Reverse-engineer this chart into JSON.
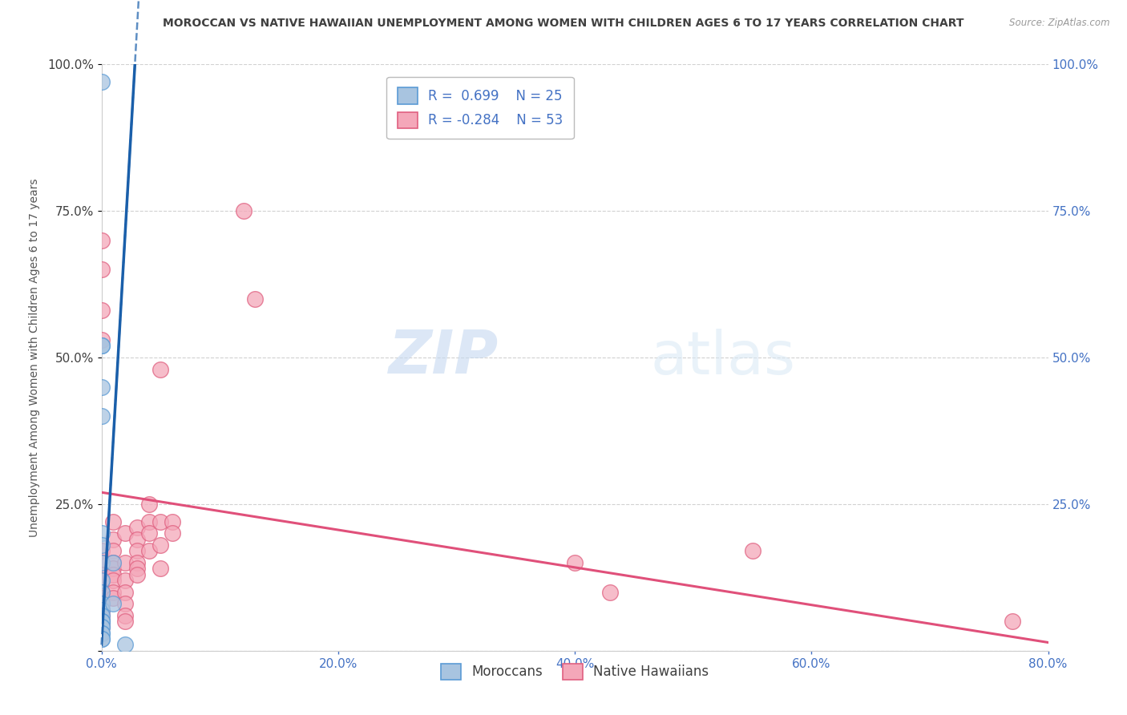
{
  "title": "MOROCCAN VS NATIVE HAWAIIAN UNEMPLOYMENT AMONG WOMEN WITH CHILDREN AGES 6 TO 17 YEARS CORRELATION CHART",
  "source": "Source: ZipAtlas.com",
  "ylabel": "Unemployment Among Women with Children Ages 6 to 17 years",
  "xlim": [
    0.0,
    0.8
  ],
  "ylim": [
    0.0,
    1.0
  ],
  "xticks": [
    0.0,
    0.2,
    0.4,
    0.6,
    0.8
  ],
  "xtick_labels": [
    "0.0%",
    "20.0%",
    "40.0%",
    "60.0%",
    "80.0%"
  ],
  "yticks": [
    0.0,
    0.25,
    0.5,
    0.75,
    1.0
  ],
  "ytick_labels": [
    "",
    "25.0%",
    "50.0%",
    "75.0%",
    "100.0%"
  ],
  "moroccan_color": "#a8c4e0",
  "moroccan_edge": "#5b9bd5",
  "native_color": "#f4a7b9",
  "native_edge": "#e06080",
  "moroccan_line_color": "#1a5faa",
  "native_line_color": "#e0507a",
  "moroccan_scatter": [
    [
      0.0,
      0.97
    ],
    [
      0.0,
      0.52
    ],
    [
      0.0,
      0.52
    ],
    [
      0.0,
      0.45
    ],
    [
      0.0,
      0.4
    ],
    [
      0.0,
      0.2
    ],
    [
      0.0,
      0.18
    ],
    [
      0.0,
      0.15
    ],
    [
      0.0,
      0.12
    ],
    [
      0.0,
      0.1
    ],
    [
      0.0,
      0.08
    ],
    [
      0.0,
      0.07
    ],
    [
      0.0,
      0.06
    ],
    [
      0.0,
      0.05
    ],
    [
      0.0,
      0.05
    ],
    [
      0.0,
      0.05
    ],
    [
      0.0,
      0.04
    ],
    [
      0.0,
      0.04
    ],
    [
      0.0,
      0.03
    ],
    [
      0.0,
      0.03
    ],
    [
      0.0,
      0.02
    ],
    [
      0.0,
      0.02
    ],
    [
      0.01,
      0.15
    ],
    [
      0.01,
      0.08
    ],
    [
      0.02,
      0.01
    ]
  ],
  "native_scatter": [
    [
      0.0,
      0.7
    ],
    [
      0.0,
      0.65
    ],
    [
      0.0,
      0.58
    ],
    [
      0.0,
      0.53
    ],
    [
      0.0,
      0.17
    ],
    [
      0.0,
      0.15
    ],
    [
      0.0,
      0.13
    ],
    [
      0.0,
      0.12
    ],
    [
      0.0,
      0.1
    ],
    [
      0.0,
      0.09
    ],
    [
      0.0,
      0.08
    ],
    [
      0.0,
      0.07
    ],
    [
      0.0,
      0.06
    ],
    [
      0.0,
      0.05
    ],
    [
      0.0,
      0.04
    ],
    [
      0.01,
      0.22
    ],
    [
      0.01,
      0.19
    ],
    [
      0.01,
      0.17
    ],
    [
      0.01,
      0.15
    ],
    [
      0.01,
      0.14
    ],
    [
      0.01,
      0.13
    ],
    [
      0.01,
      0.12
    ],
    [
      0.01,
      0.1
    ],
    [
      0.01,
      0.09
    ],
    [
      0.02,
      0.2
    ],
    [
      0.02,
      0.15
    ],
    [
      0.02,
      0.12
    ],
    [
      0.02,
      0.1
    ],
    [
      0.02,
      0.08
    ],
    [
      0.02,
      0.06
    ],
    [
      0.02,
      0.05
    ],
    [
      0.03,
      0.21
    ],
    [
      0.03,
      0.19
    ],
    [
      0.03,
      0.17
    ],
    [
      0.03,
      0.15
    ],
    [
      0.03,
      0.14
    ],
    [
      0.03,
      0.13
    ],
    [
      0.04,
      0.25
    ],
    [
      0.04,
      0.22
    ],
    [
      0.04,
      0.2
    ],
    [
      0.04,
      0.17
    ],
    [
      0.05,
      0.48
    ],
    [
      0.05,
      0.22
    ],
    [
      0.05,
      0.18
    ],
    [
      0.05,
      0.14
    ],
    [
      0.06,
      0.22
    ],
    [
      0.06,
      0.2
    ],
    [
      0.12,
      0.75
    ],
    [
      0.13,
      0.6
    ],
    [
      0.4,
      0.15
    ],
    [
      0.43,
      0.1
    ],
    [
      0.55,
      0.17
    ],
    [
      0.77,
      0.05
    ]
  ],
  "moroccan_reg_intercept": 0.01,
  "moroccan_reg_slope": 35.0,
  "native_reg_intercept": 0.27,
  "native_reg_slope": -0.32,
  "watermark_zip": "ZIP",
  "watermark_atlas": "atlas",
  "background_color": "#ffffff",
  "grid_color": "#cccccc",
  "title_color": "#404040",
  "axis_label_color": "#555555",
  "tick_color_left": "#404040",
  "tick_color_right": "#4472c4",
  "legend_r1": "R =  0.699",
  "legend_n1": "N = 25",
  "legend_r2": "R = -0.284",
  "legend_n2": "N = 53"
}
